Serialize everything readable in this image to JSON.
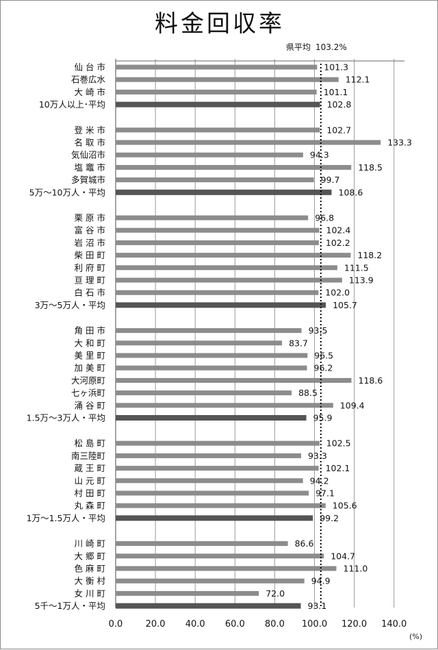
{
  "chart_data": {
    "type": "bar",
    "orientation": "horizontal",
    "title": "料金回収率",
    "unit": "(%)",
    "xlim": [
      0,
      150
    ],
    "x_ticks": [
      "0.0",
      "20.0",
      "40.0",
      "60.0",
      "80.0",
      "100.0",
      "120.0",
      "140.0"
    ],
    "grid": "vertical",
    "reference_line": {
      "label": "県平均",
      "value_label": "103.2%",
      "value": 103.2
    },
    "groups": [
      {
        "rows": [
          {
            "label": "仙 台 市",
            "value": 101.3,
            "value_label": "101.3",
            "average": false
          },
          {
            "label": "石巻広水",
            "value": 112.1,
            "value_label": "112.1",
            "average": false
          },
          {
            "label": "大 崎 市",
            "value": 101.1,
            "value_label": "101.1",
            "average": false
          },
          {
            "label": "10万人以上･平均",
            "value": 102.8,
            "value_label": "102.8",
            "average": true
          }
        ]
      },
      {
        "rows": [
          {
            "label": "登 米 市",
            "value": 102.7,
            "value_label": "102.7",
            "average": false
          },
          {
            "label": "名 取 市",
            "value": 133.3,
            "value_label": "133.3",
            "average": false
          },
          {
            "label": "気仙沼市",
            "value": 94.3,
            "value_label": "94.3",
            "average": false
          },
          {
            "label": "塩 竈 市",
            "value": 118.5,
            "value_label": "118.5",
            "average": false
          },
          {
            "label": "多賀城市",
            "value": 99.7,
            "value_label": "99.7",
            "average": false
          },
          {
            "label": "5万～10万人・平均",
            "value": 108.6,
            "value_label": "108.6",
            "average": true
          }
        ]
      },
      {
        "rows": [
          {
            "label": "栗 原 市",
            "value": 96.8,
            "value_label": "96.8",
            "average": false
          },
          {
            "label": "富 谷 市",
            "value": 102.4,
            "value_label": "102.4",
            "average": false
          },
          {
            "label": "岩 沼 市",
            "value": 102.2,
            "value_label": "102.2",
            "average": false
          },
          {
            "label": "柴 田 町",
            "value": 118.2,
            "value_label": "118.2",
            "average": false
          },
          {
            "label": "利 府 町",
            "value": 111.5,
            "value_label": "111.5",
            "average": false
          },
          {
            "label": "亘 理 町",
            "value": 113.9,
            "value_label": "113.9",
            "average": false
          },
          {
            "label": "白 石 市",
            "value": 102.0,
            "value_label": "102.0",
            "average": false
          },
          {
            "label": "3万～5万人・平均",
            "value": 105.7,
            "value_label": "105.7",
            "average": true
          }
        ]
      },
      {
        "rows": [
          {
            "label": "角 田 市",
            "value": 93.5,
            "value_label": "93.5",
            "average": false
          },
          {
            "label": "大 和 町",
            "value": 83.7,
            "value_label": "83.7",
            "average": false
          },
          {
            "label": "美 里 町",
            "value": 96.5,
            "value_label": "96.5",
            "average": false
          },
          {
            "label": "加 美 町",
            "value": 96.2,
            "value_label": "96.2",
            "average": false
          },
          {
            "label": "大河原町",
            "value": 118.6,
            "value_label": "118.6",
            "average": false
          },
          {
            "label": "七ヶ浜町",
            "value": 88.5,
            "value_label": "88.5",
            "average": false
          },
          {
            "label": "涌 谷 町",
            "value": 109.4,
            "value_label": "109.4",
            "average": false
          },
          {
            "label": "1.5万～3万人・平均",
            "value": 95.9,
            "value_label": "95.9",
            "average": true
          }
        ]
      },
      {
        "rows": [
          {
            "label": "松 島 町",
            "value": 102.5,
            "value_label": "102.5",
            "average": false
          },
          {
            "label": "南三陸町",
            "value": 93.3,
            "value_label": "93.3",
            "average": false
          },
          {
            "label": "蔵 王 町",
            "value": 102.1,
            "value_label": "102.1",
            "average": false
          },
          {
            "label": "山 元 町",
            "value": 94.2,
            "value_label": "94.2",
            "average": false
          },
          {
            "label": "村 田 町",
            "value": 97.1,
            "value_label": "97.1",
            "average": false
          },
          {
            "label": "丸 森 町",
            "value": 105.6,
            "value_label": "105.6",
            "average": false
          },
          {
            "label": "1万～1.5万人・平均",
            "value": 99.2,
            "value_label": "99.2",
            "average": true
          }
        ]
      },
      {
        "rows": [
          {
            "label": "川 崎 町",
            "value": 86.6,
            "value_label": "86.6",
            "average": false
          },
          {
            "label": "大 郷 町",
            "value": 104.7,
            "value_label": "104.7",
            "average": false
          },
          {
            "label": "色 麻 町",
            "value": 111.0,
            "value_label": "111.0",
            "average": false
          },
          {
            "label": "大 衡 村",
            "value": 94.9,
            "value_label": "94.9",
            "average": false
          },
          {
            "label": "女 川 町",
            "value": 72.0,
            "value_label": "72.0",
            "average": false
          },
          {
            "label": "5千～1万人・平均",
            "value": 93.1,
            "value_label": "93.1",
            "average": true
          }
        ]
      }
    ],
    "colors": {
      "bar": "#8c8c8c",
      "average_bar": "#555555",
      "grid": "#9a9a9a",
      "reference_line": "#000000"
    }
  }
}
